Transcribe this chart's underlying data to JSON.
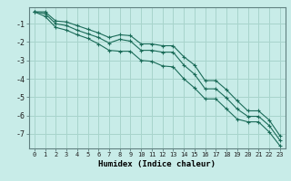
{
  "xlabel": "Humidex (Indice chaleur)",
  "background_color": "#c8ece8",
  "grid_color": "#a8d4cc",
  "line_color": "#1a6b58",
  "x": [
    0,
    1,
    2,
    3,
    4,
    5,
    6,
    7,
    8,
    9,
    10,
    11,
    12,
    13,
    14,
    15,
    16,
    17,
    18,
    19,
    20,
    21,
    22,
    23
  ],
  "y_mean": [
    -0.35,
    -0.45,
    -1.0,
    -1.1,
    -1.35,
    -1.55,
    -1.75,
    -2.05,
    -1.85,
    -1.95,
    -2.45,
    -2.45,
    -2.55,
    -2.55,
    -3.25,
    -3.75,
    -4.55,
    -4.55,
    -5.05,
    -5.65,
    -6.05,
    -6.05,
    -6.55,
    -7.35
  ],
  "y_min": [
    -0.35,
    -0.6,
    -1.2,
    -1.35,
    -1.6,
    -1.8,
    -2.1,
    -2.45,
    -2.5,
    -2.5,
    -3.0,
    -3.05,
    -3.3,
    -3.35,
    -4.0,
    -4.5,
    -5.1,
    -5.1,
    -5.65,
    -6.2,
    -6.35,
    -6.35,
    -6.9,
    -7.65
  ],
  "y_max": [
    -0.35,
    -0.35,
    -0.85,
    -0.9,
    -1.1,
    -1.3,
    -1.5,
    -1.75,
    -1.6,
    -1.65,
    -2.1,
    -2.1,
    -2.2,
    -2.2,
    -2.8,
    -3.25,
    -4.1,
    -4.1,
    -4.6,
    -5.2,
    -5.75,
    -5.75,
    -6.25,
    -7.1
  ],
  "ylim": [
    -7.8,
    -0.1
  ],
  "xlim": [
    -0.5,
    23.5
  ],
  "yticks": [
    -7,
    -6,
    -5,
    -4,
    -3,
    -2,
    -1
  ],
  "xticks": [
    0,
    1,
    2,
    3,
    4,
    5,
    6,
    7,
    8,
    9,
    10,
    11,
    12,
    13,
    14,
    15,
    16,
    17,
    18,
    19,
    20,
    21,
    22,
    23
  ]
}
